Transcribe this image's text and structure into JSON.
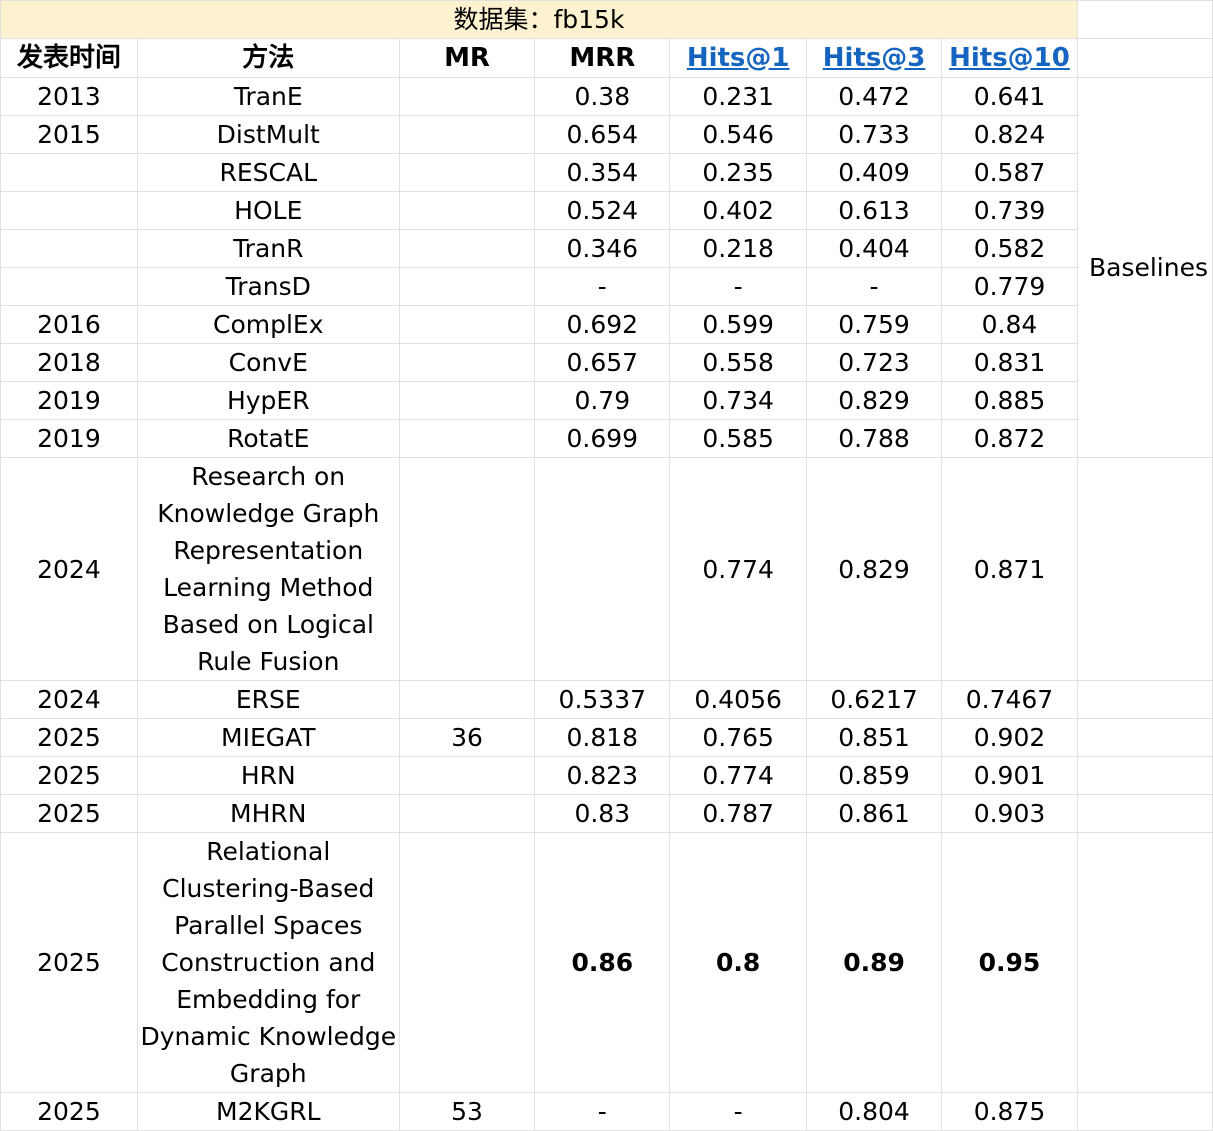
{
  "dataset_title": "数据集：fb15k",
  "headers": {
    "year": "发表时间",
    "method": "方法",
    "mr": "MR",
    "mrr": "MRR",
    "hits1": "Hits@1",
    "hits3": "Hits@3",
    "hits10": "Hits@10"
  },
  "baselines_label": "Baselines",
  "rows": [
    {
      "year": "2013",
      "method": "TranE",
      "mr": "",
      "mrr": "0.38",
      "hits1": "0.231",
      "hits3": "0.472",
      "hits10": "0.641"
    },
    {
      "year": "2015",
      "method": "DistMult",
      "mr": "",
      "mrr": "0.654",
      "hits1": "0.546",
      "hits3": "0.733",
      "hits10": "0.824"
    },
    {
      "year": "",
      "method": "RESCAL",
      "mr": "",
      "mrr": "0.354",
      "hits1": "0.235",
      "hits3": "0.409",
      "hits10": "0.587"
    },
    {
      "year": "",
      "method": "HOLE",
      "mr": "",
      "mrr": "0.524",
      "hits1": "0.402",
      "hits3": "0.613",
      "hits10": "0.739"
    },
    {
      "year": "",
      "method": "TranR",
      "mr": "",
      "mrr": "0.346",
      "hits1": "0.218",
      "hits3": "0.404",
      "hits10": "0.582"
    },
    {
      "year": "",
      "method": "TransD",
      "mr": "",
      "mrr": "-",
      "hits1": "-",
      "hits3": "-",
      "hits10": "0.779"
    },
    {
      "year": "2016",
      "method": "ComplEx",
      "mr": "",
      "mrr": "0.692",
      "hits1": "0.599",
      "hits3": "0.759",
      "hits10": "0.84"
    },
    {
      "year": "2018",
      "method": "ConvE",
      "mr": "",
      "mrr": "0.657",
      "hits1": "0.558",
      "hits3": "0.723",
      "hits10": "0.831"
    },
    {
      "year": "2019",
      "method": "HypER",
      "mr": "",
      "mrr": "0.79",
      "hits1": "0.734",
      "hits3": "0.829",
      "hits10": "0.885"
    },
    {
      "year": "2019",
      "method": "RotatE",
      "mr": "",
      "mrr": "0.699",
      "hits1": "0.585",
      "hits3": "0.788",
      "hits10": "0.872"
    },
    {
      "year": "2024",
      "method": "Research on Knowledge Graph Representation Learning Method Based on Logical Rule Fusion",
      "mr": "",
      "mrr": "",
      "hits1": "0.774",
      "hits3": "0.829",
      "hits10": "0.871"
    },
    {
      "year": "2024",
      "method": "ERSE",
      "mr": "",
      "mrr": "0.5337",
      "hits1": "0.4056",
      "hits3": "0.6217",
      "hits10": "0.7467"
    },
    {
      "year": "2025",
      "method": "MIEGAT",
      "mr": "36",
      "mrr": "0.818",
      "hits1": "0.765",
      "hits3": "0.851",
      "hits10": "0.902"
    },
    {
      "year": "2025",
      "method": "HRN",
      "mr": "",
      "mrr": "0.823",
      "hits1": "0.774",
      "hits3": "0.859",
      "hits10": "0.901"
    },
    {
      "year": "2025",
      "method": "MHRN",
      "mr": "",
      "mrr": "0.83",
      "hits1": "0.787",
      "hits3": "0.861",
      "hits10": "0.903"
    },
    {
      "year": "2025",
      "method": "Relational Clustering-Based Parallel Spaces Construction and Embedding for Dynamic Knowledge Graph",
      "mr": "",
      "mrr": "0.86",
      "hits1": "0.8",
      "hits3": "0.89",
      "hits10": "0.95"
    },
    {
      "year": "2025",
      "method": "M2KGRL",
      "mr": "53",
      "mrr": "-",
      "hits1": "-",
      "hits3": "0.804",
      "hits10": "0.875"
    }
  ]
}
